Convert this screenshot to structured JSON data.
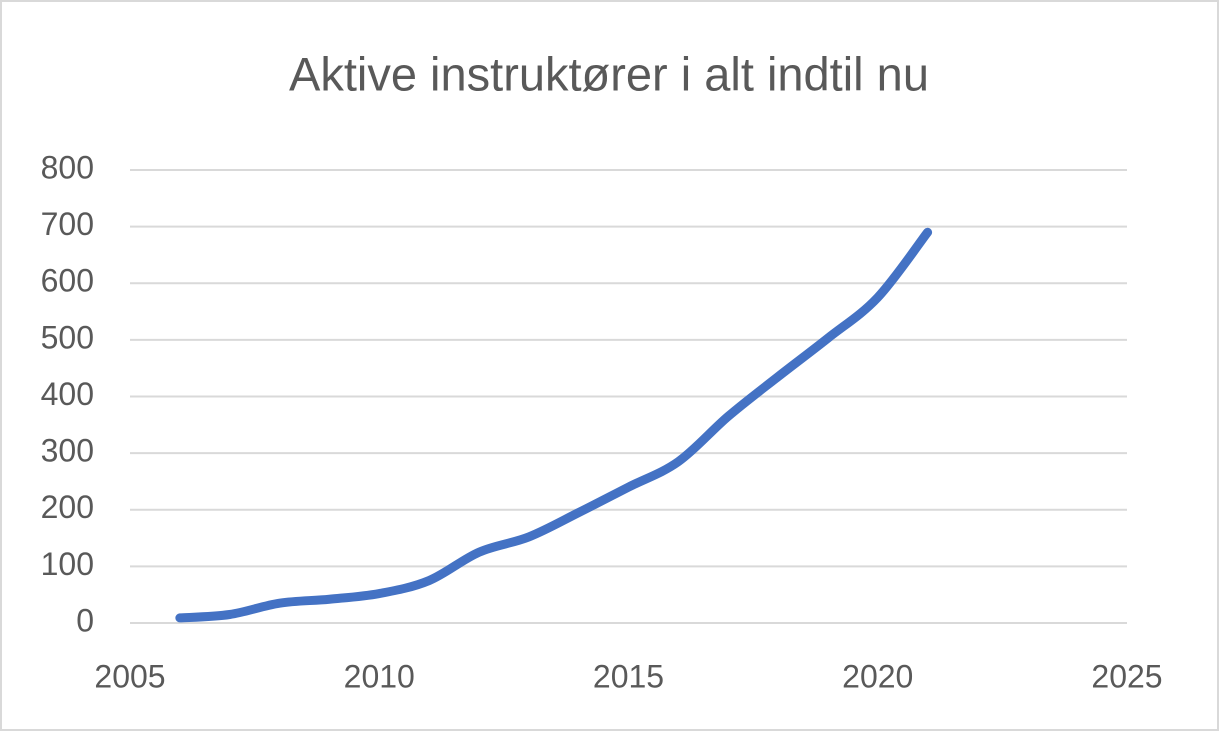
{
  "chart_data": {
    "type": "line",
    "title": "Aktive instruktører i alt indtil nu",
    "x": [
      2006,
      2007,
      2008,
      2009,
      2010,
      2011,
      2012,
      2013,
      2014,
      2015,
      2016,
      2017,
      2018,
      2019,
      2020,
      2021
    ],
    "series": [
      {
        "name": "Aktive instruktører",
        "color": "#4472c4",
        "values": [
          9,
          15,
          35,
          42,
          52,
          75,
          125,
          152,
          195,
          240,
          285,
          365,
          435,
          503,
          575,
          690
        ]
      }
    ],
    "xlim": [
      2005,
      2025
    ],
    "xticks": [
      2005,
      2010,
      2015,
      2020,
      2025
    ],
    "ylim": [
      0,
      800
    ],
    "yticks": [
      0,
      100,
      200,
      300,
      400,
      500,
      600,
      700,
      800
    ],
    "grid": true,
    "smooth": true
  }
}
